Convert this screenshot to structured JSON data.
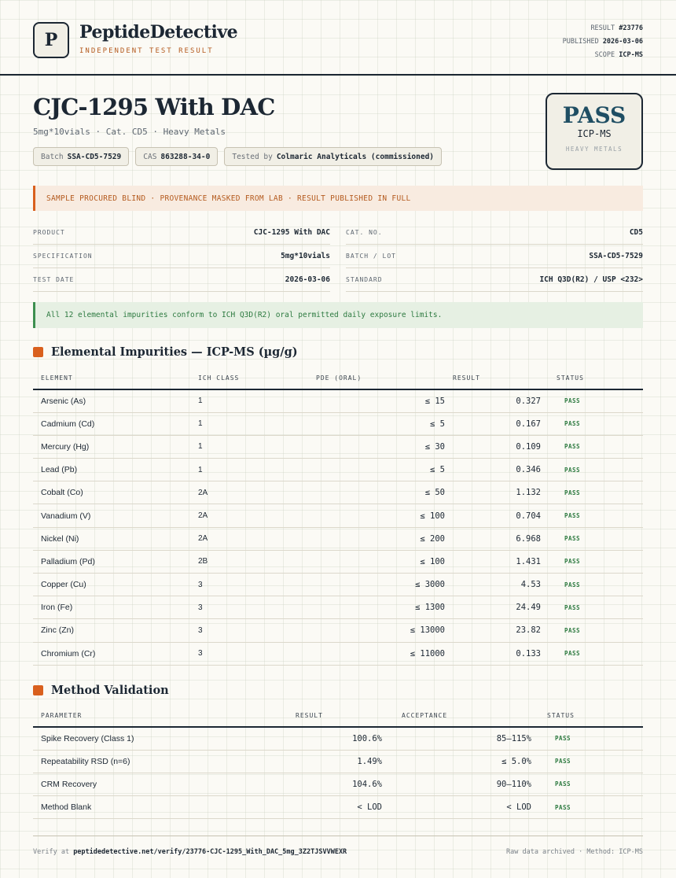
{
  "header": {
    "logo_letter": "P",
    "brand": "PeptideDetective",
    "tagline": "INDEPENDENT TEST RESULT",
    "result_label": "RESULT",
    "result_value": "#23776",
    "published_label": "PUBLISHED",
    "published_value": "2026-03-06",
    "scope_label": "SCOPE",
    "scope_value": "ICP-MS"
  },
  "product": {
    "title": "CJC-1295 With DAC",
    "subtitle": "5mg*10vials · Cat. CD5 · Heavy Metals",
    "chips": {
      "batch_label": "Batch",
      "batch_value": "SSA-CD5-7529",
      "cas_label": "CAS",
      "cas_value": "863288-34-0",
      "tested_label": "Tested by",
      "tested_value": "Colmaric Analyticals (commissioned)"
    }
  },
  "verdict": {
    "word": "PASS",
    "method": "ICP-MS",
    "scope": "HEAVY METALS",
    "color": "#1f4e63"
  },
  "banner_warning": "SAMPLE PROCURED BLIND · PROVENANCE MASKED FROM LAB · RESULT PUBLISHED IN FULL",
  "info": {
    "product_label": "PRODUCT",
    "product_value": "CJC-1295 With DAC",
    "cat_label": "CAT. NO.",
    "cat_value": "CD5",
    "spec_label": "SPECIFICATION",
    "spec_value": "5mg*10vials",
    "batch_label": "BATCH / LOT",
    "batch_value": "SSA-CD5-7529",
    "date_label": "TEST DATE",
    "date_value": "2026-03-06",
    "standard_label": "STANDARD",
    "standard_value": "ICH Q3D(R2) / USP <232>"
  },
  "banner_ok": "All 12 elemental impurities conform to ICH Q3D(R2) oral permitted daily exposure limits.",
  "impurities": {
    "title": "Elemental Impurities — ICP-MS (µg/g)",
    "headers": [
      "ELEMENT",
      "ICH CLASS",
      "PDE (ORAL)",
      "RESULT",
      "STATUS"
    ],
    "rows": [
      {
        "element": "Arsenic (As)",
        "class": "1",
        "pde": "≤ 15",
        "result": "0.327",
        "status": "PASS"
      },
      {
        "element": "Cadmium (Cd)",
        "class": "1",
        "pde": "≤ 5",
        "result": "0.167",
        "status": "PASS"
      },
      {
        "element": "Mercury (Hg)",
        "class": "1",
        "pde": "≤ 30",
        "result": "0.109",
        "status": "PASS"
      },
      {
        "element": "Lead (Pb)",
        "class": "1",
        "pde": "≤ 5",
        "result": "0.346",
        "status": "PASS"
      },
      {
        "element": "Cobalt (Co)",
        "class": "2A",
        "pde": "≤ 50",
        "result": "1.132",
        "status": "PASS"
      },
      {
        "element": "Vanadium (V)",
        "class": "2A",
        "pde": "≤ 100",
        "result": "0.704",
        "status": "PASS"
      },
      {
        "element": "Nickel (Ni)",
        "class": "2A",
        "pde": "≤ 200",
        "result": "6.968",
        "status": "PASS"
      },
      {
        "element": "Palladium (Pd)",
        "class": "2B",
        "pde": "≤ 100",
        "result": "1.431",
        "status": "PASS"
      },
      {
        "element": "Copper (Cu)",
        "class": "3",
        "pde": "≤ 3000",
        "result": "4.53",
        "status": "PASS"
      },
      {
        "element": "Iron (Fe)",
        "class": "3",
        "pde": "≤ 1300",
        "result": "24.49",
        "status": "PASS"
      },
      {
        "element": "Zinc (Zn)",
        "class": "3",
        "pde": "≤ 13000",
        "result": "23.82",
        "status": "PASS"
      },
      {
        "element": "Chromium (Cr)",
        "class": "3",
        "pde": "≤ 11000",
        "result": "0.133",
        "status": "PASS"
      }
    ]
  },
  "validation": {
    "title": "Method Validation",
    "headers": [
      "PARAMETER",
      "RESULT",
      "ACCEPTANCE",
      "STATUS"
    ],
    "rows": [
      {
        "parameter": "Spike Recovery (Class 1)",
        "result": "100.6%",
        "acceptance": "85–115%",
        "status": "PASS"
      },
      {
        "parameter": "Repeatability RSD (n=6)",
        "result": "1.49%",
        "acceptance": "≤ 5.0%",
        "status": "PASS"
      },
      {
        "parameter": "CRM Recovery",
        "result": "104.6%",
        "acceptance": "90–110%",
        "status": "PASS"
      },
      {
        "parameter": "Method Blank",
        "result": "< LOD",
        "acceptance": "< LOD",
        "status": "PASS"
      }
    ]
  },
  "footer": {
    "verify_label": "Verify at",
    "verify_url": "peptidedetective.net/verify/23776-CJC-1295_With_DAC_5mg_3Z2TJSVVWEXR",
    "archive_note": "Raw data archived · Method: ICP-MS"
  },
  "colors": {
    "accent": "#d9601e",
    "pass_green": "#2d7a40",
    "ink": "#1c2733"
  }
}
